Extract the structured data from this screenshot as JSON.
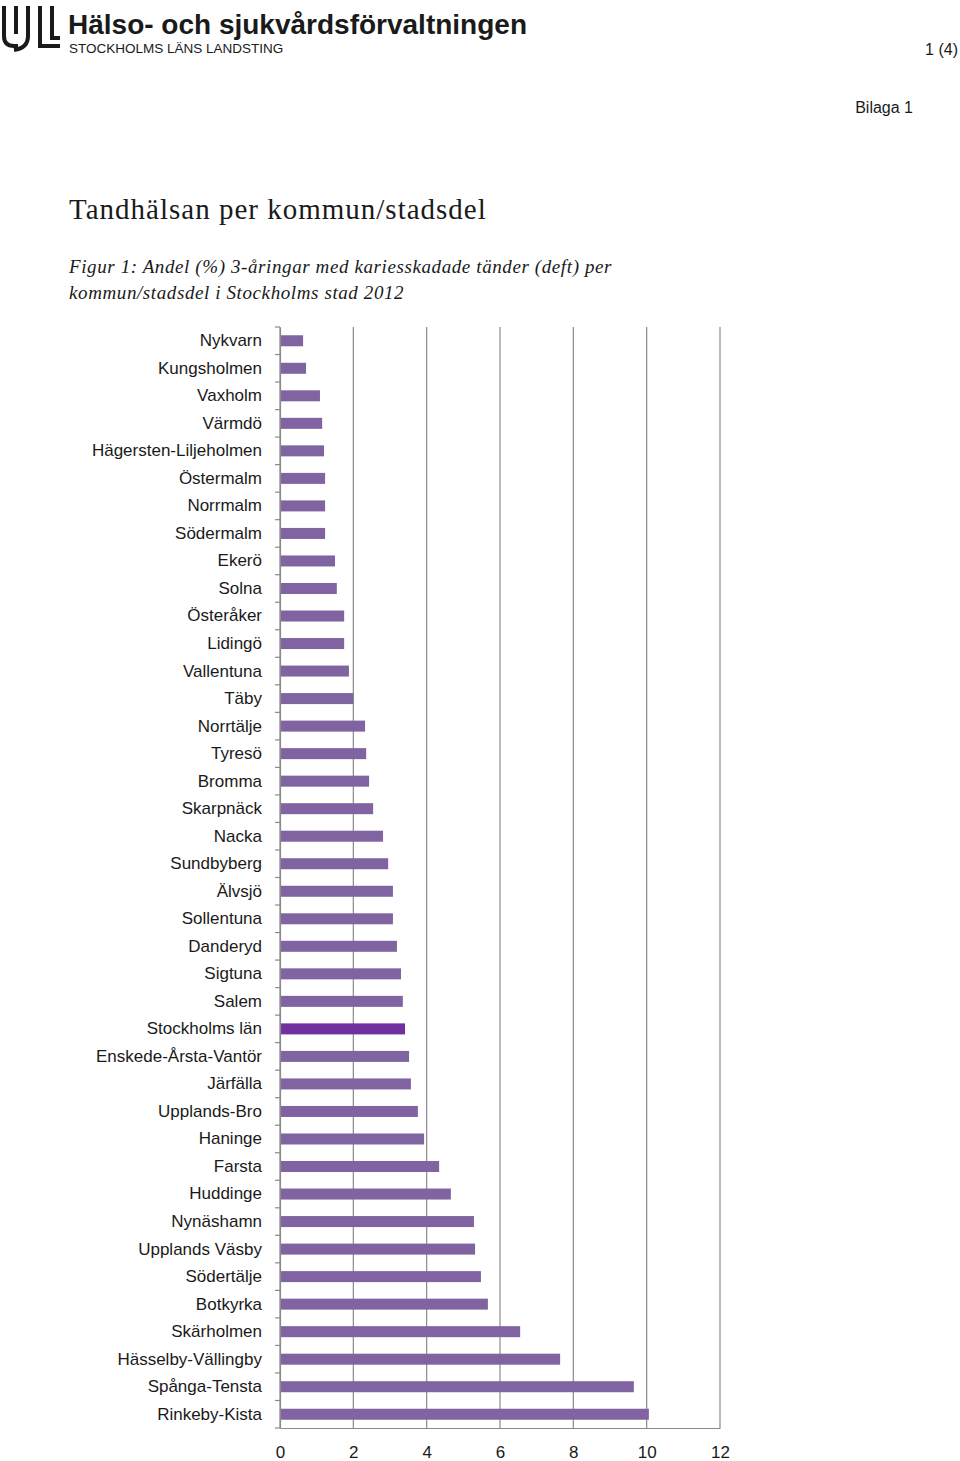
{
  "page": {
    "org_name": "Hälso- och sjukvårdsförvaltningen",
    "org_sub": "STOCKHOLMS LÄNS LANDSTING",
    "page_number": "1 (4)",
    "appendix": "Bilaga 1",
    "heading": "Tandhälsan per kommun/stadsdel",
    "caption_lines": [
      "Figur 1: Andel (%) 3-åringar med kariesskadade tänder (deft) per",
      "kommun/stadsdel i Stockholms stad 2012"
    ]
  },
  "chart_data": {
    "type": "bar",
    "orientation": "horizontal",
    "grid": true,
    "categories": [
      "Nykvarn",
      "Kungsholmen",
      "Vaxholm",
      "Värmdö",
      "Hägersten-Liljeholmen",
      "Östermalm",
      "Norrmalm",
      "Södermalm",
      "Ekerö",
      "Solna",
      "Österåker",
      "Lidingö",
      "Vallentuna",
      "Täby",
      "Norrtälje",
      "Tyresö",
      "Bromma",
      "Skarpnäck",
      "Nacka",
      "Sundbyberg",
      "Älvsjö",
      "Sollentuna",
      "Danderyd",
      "Sigtuna",
      "Salem",
      "Stockholms län",
      "Enskede-Årsta-Vantör",
      "Järfälla",
      "Upplands-Bro",
      "Haninge",
      "Farsta",
      "Huddinge",
      "Nynäshamn",
      "Upplands Väsby",
      "Södertälje",
      "Botkyrka",
      "Skärholmen",
      "Hässelby-Vällingby",
      "Spånga-Tensta",
      "Rinkeby-Kista"
    ],
    "values": [
      0.63,
      0.71,
      1.09,
      1.15,
      1.2,
      1.23,
      1.23,
      1.23,
      1.5,
      1.55,
      1.75,
      1.75,
      1.88,
      2.0,
      2.32,
      2.35,
      2.43,
      2.54,
      2.81,
      2.95,
      3.08,
      3.08,
      3.19,
      3.3,
      3.35,
      3.41,
      3.52,
      3.57,
      3.76,
      3.93,
      4.34,
      4.66,
      5.29,
      5.32,
      5.48,
      5.67,
      6.55,
      7.64,
      9.65,
      10.06
    ],
    "colors": [
      "#8064a2",
      "#8064a2",
      "#8064a2",
      "#8064a2",
      "#8064a2",
      "#8064a2",
      "#8064a2",
      "#8064a2",
      "#8064a2",
      "#8064a2",
      "#8064a2",
      "#8064a2",
      "#8064a2",
      "#8064a2",
      "#8064a2",
      "#8064a2",
      "#8064a2",
      "#8064a2",
      "#8064a2",
      "#8064a2",
      "#8064a2",
      "#8064a2",
      "#8064a2",
      "#8064a2",
      "#8064a2",
      "#7030a0",
      "#8064a2",
      "#8064a2",
      "#8064a2",
      "#8064a2",
      "#8064a2",
      "#8064a2",
      "#8064a2",
      "#8064a2",
      "#8064a2",
      "#8064a2",
      "#8064a2",
      "#8064a2",
      "#8064a2",
      "#8064a2"
    ],
    "xlim": [
      0,
      12
    ],
    "xticks": [
      0,
      2,
      4,
      6,
      8,
      10,
      12
    ]
  }
}
